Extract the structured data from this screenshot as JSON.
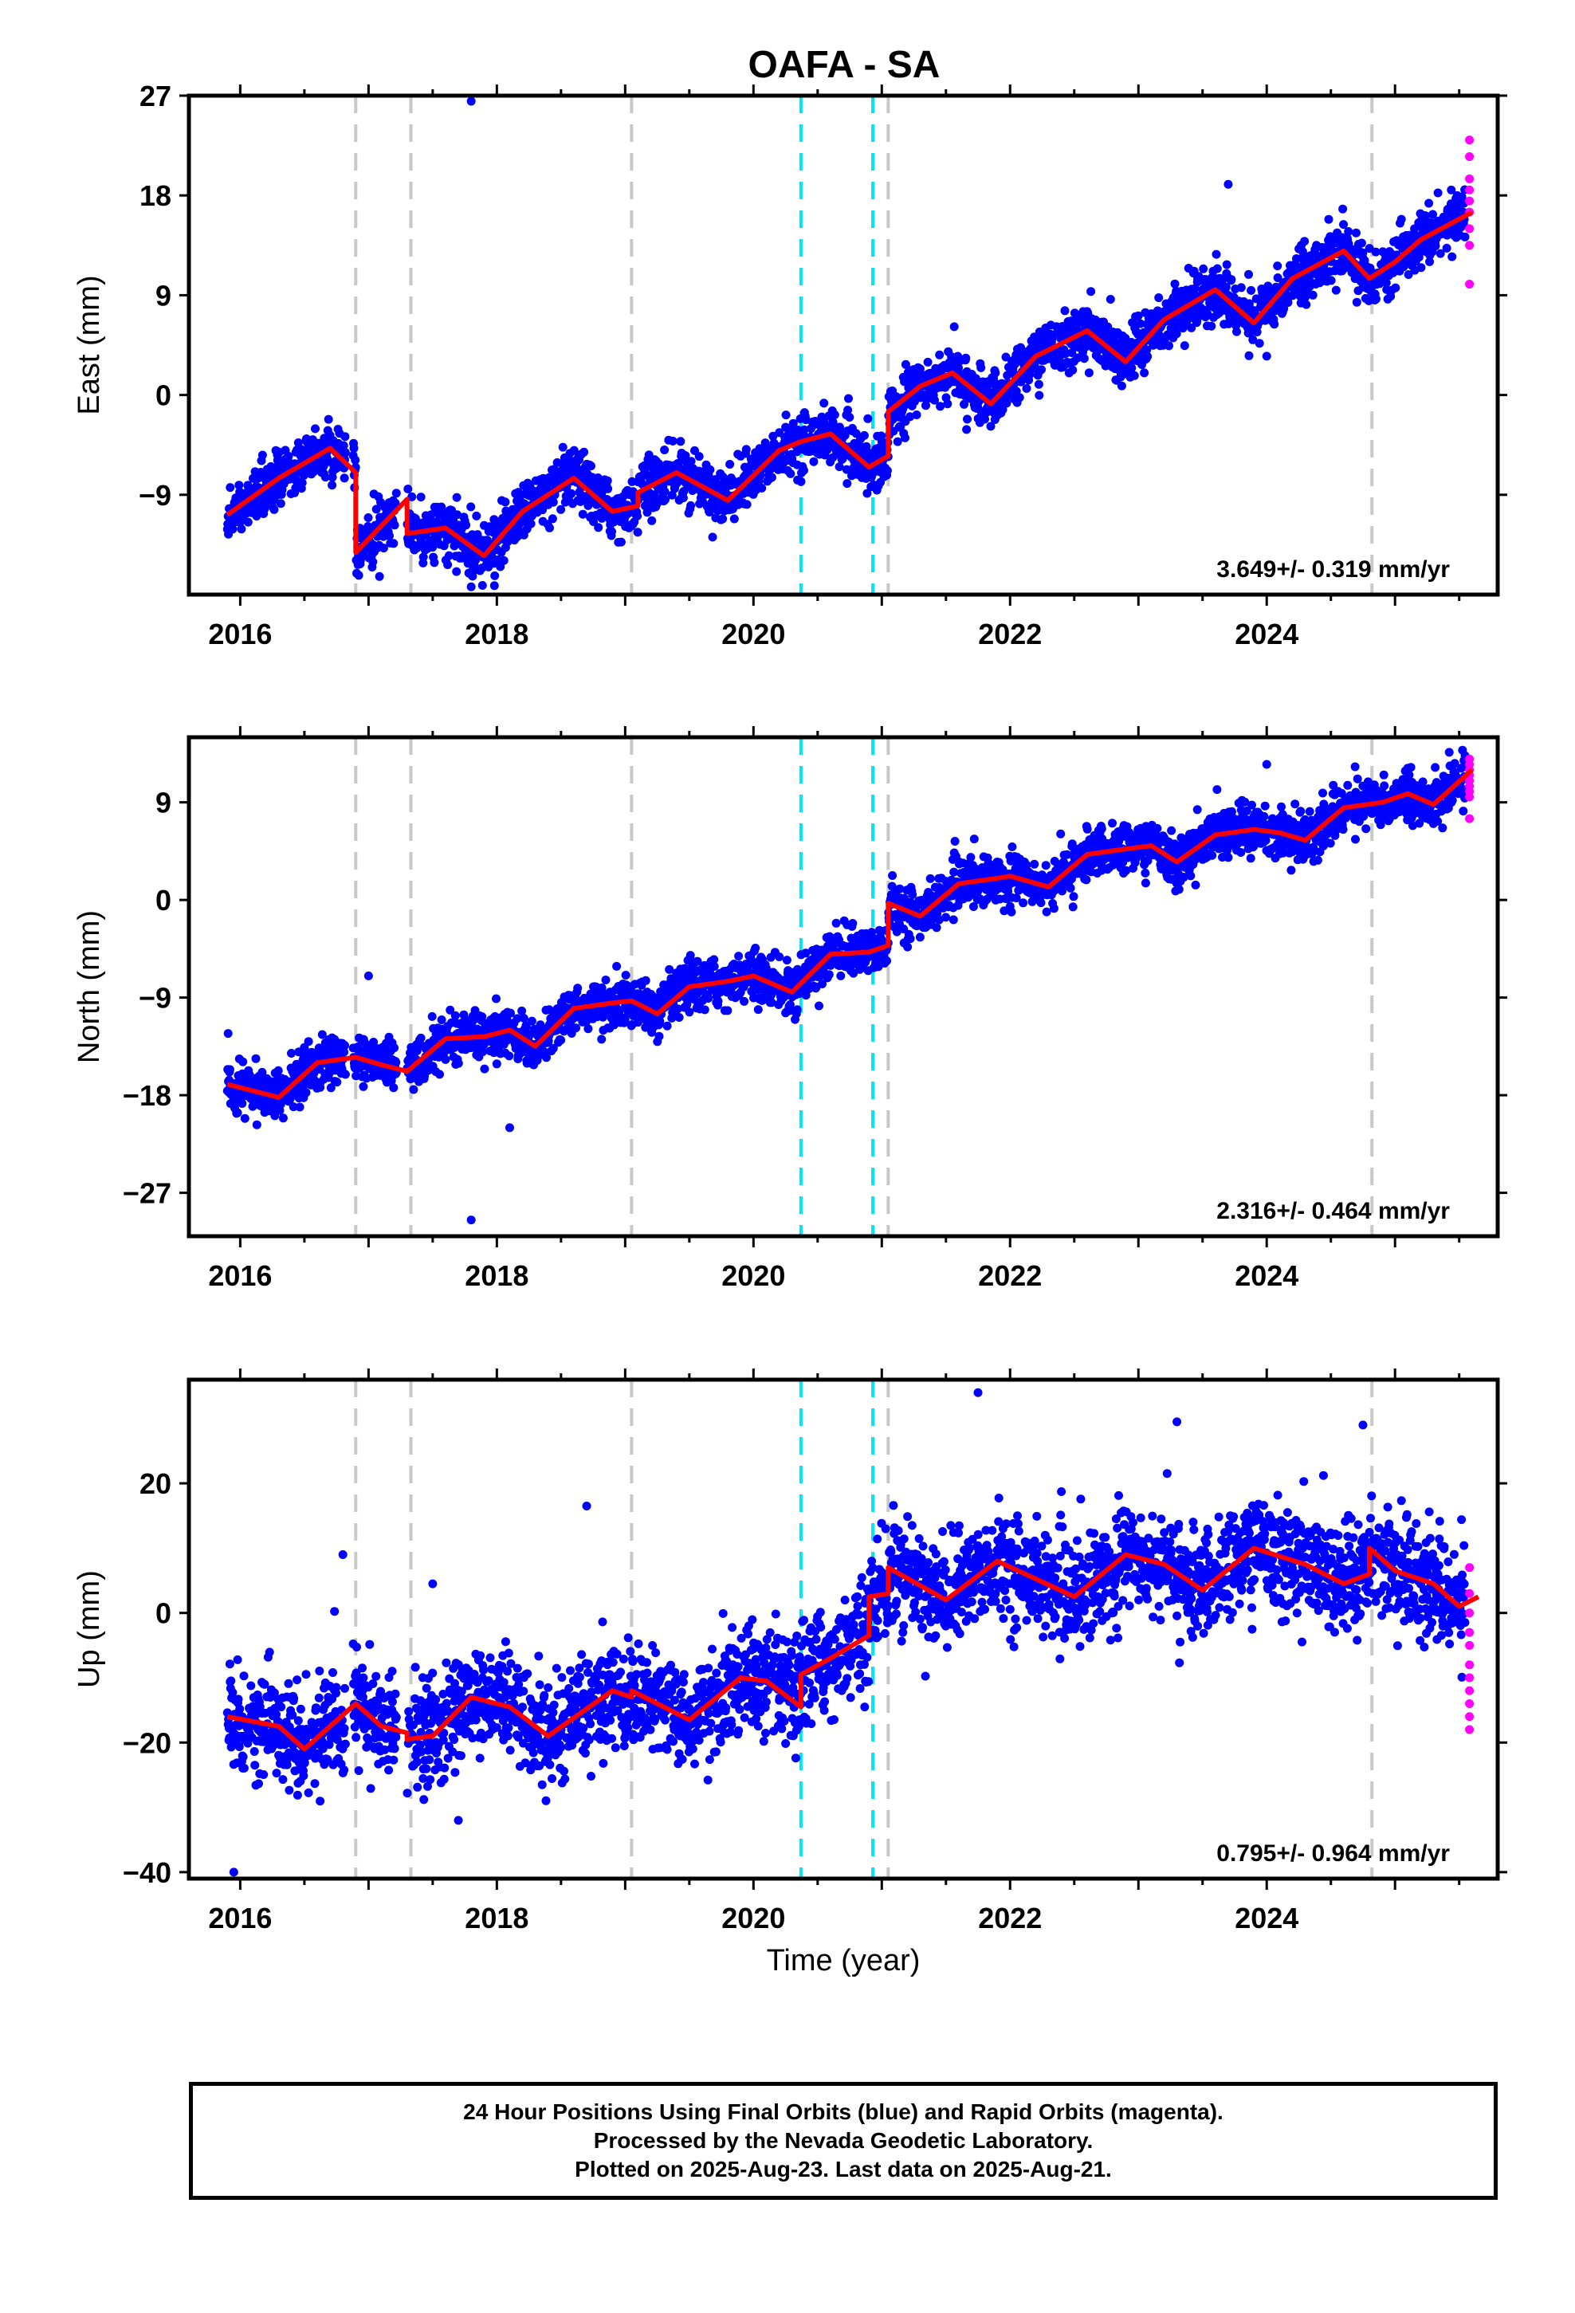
{
  "title": "OAFA - SA",
  "footer": {
    "line1": "24 Hour Positions Using Final Orbits (blue) and Rapid Orbits (magenta).",
    "line2": "Processed by the Nevada Geodetic Laboratory.",
    "line3": "Plotted on 2025-Aug-23. Last data on 2025-Aug-21."
  },
  "colors": {
    "final_orbits": "#0000ff",
    "rapid_orbits": "#ff00ff",
    "model": "#ff0000",
    "event_gray": "#c8c8c8",
    "event_cyan": "#00e5ff"
  },
  "chart_data": [
    {
      "type": "scatter",
      "id": "east",
      "ylabel": "East (mm)",
      "xlabel": "",
      "xlim": [
        2015.6,
        2025.8
      ],
      "ylim": [
        -18,
        27
      ],
      "yticks": [
        27,
        18,
        9,
        0,
        -9
      ],
      "xticks": [
        2016,
        2018,
        2020,
        2022,
        2024
      ],
      "rate_text": "3.649+/- 0.319 mm/yr",
      "noise_sd": 1.2,
      "model_path": [
        [
          2015.9,
          -10.8
        ],
        [
          2016.3,
          -7.5
        ],
        [
          2016.7,
          -4.8
        ],
        [
          2016.9,
          -7.0
        ],
        [
          2016.9,
          -14.2
        ],
        [
          2017.3,
          -9.4
        ],
        [
          2017.3,
          -12.5
        ],
        [
          2017.6,
          -12.0
        ],
        [
          2017.9,
          -14.5
        ],
        [
          2018.2,
          -10.5
        ],
        [
          2018.6,
          -7.5
        ],
        [
          2018.9,
          -10.5
        ],
        [
          2019.1,
          -10.0
        ],
        [
          2019.1,
          -8.8
        ],
        [
          2019.4,
          -7.0
        ],
        [
          2019.8,
          -9.5
        ],
        [
          2020.2,
          -5.0
        ],
        [
          2020.37,
          -4.2
        ],
        [
          2020.6,
          -3.5
        ],
        [
          2020.9,
          -6.5
        ],
        [
          2021.05,
          -5.5
        ],
        [
          2021.05,
          -1.5
        ],
        [
          2021.3,
          0.8
        ],
        [
          2021.55,
          2.0
        ],
        [
          2021.85,
          -0.8
        ],
        [
          2022.2,
          3.5
        ],
        [
          2022.6,
          5.8
        ],
        [
          2022.9,
          3.0
        ],
        [
          2023.2,
          6.8
        ],
        [
          2023.6,
          9.5
        ],
        [
          2023.9,
          6.5
        ],
        [
          2024.2,
          10.5
        ],
        [
          2024.6,
          13.0
        ],
        [
          2024.8,
          10.5
        ],
        [
          2025.0,
          12.0
        ],
        [
          2025.2,
          14.0
        ],
        [
          2025.6,
          16.5
        ]
      ],
      "outliers": [
        [
          2017.8,
          26.5
        ],
        [
          2017.8,
          -17.3
        ],
        [
          2023.7,
          19.0
        ],
        [
          2024.0,
          3.5
        ]
      ],
      "rapid_points": [
        [
          2025.58,
          23.0
        ],
        [
          2025.58,
          21.5
        ],
        [
          2025.58,
          19.5
        ],
        [
          2025.58,
          18.5
        ],
        [
          2025.58,
          17.5
        ],
        [
          2025.58,
          16.5
        ],
        [
          2025.58,
          15.0
        ],
        [
          2025.58,
          13.5
        ],
        [
          2025.58,
          10.0
        ]
      ]
    },
    {
      "type": "scatter",
      "id": "north",
      "ylabel": "North (mm)",
      "xlabel": "",
      "xlim": [
        2015.6,
        2025.8
      ],
      "ylim": [
        -31,
        15
      ],
      "yticks": [
        9,
        0,
        -9,
        -18,
        -27
      ],
      "xticks": [
        2016,
        2018,
        2020,
        2022,
        2024
      ],
      "rate_text": "2.316+/- 0.464 mm/yr",
      "noise_sd": 1.1,
      "model_path": [
        [
          2015.9,
          -17.0
        ],
        [
          2016.3,
          -18.2
        ],
        [
          2016.6,
          -15.0
        ],
        [
          2016.9,
          -14.5
        ],
        [
          2017.1,
          -15.2
        ],
        [
          2017.3,
          -15.8
        ],
        [
          2017.6,
          -12.8
        ],
        [
          2017.9,
          -12.6
        ],
        [
          2018.1,
          -12.0
        ],
        [
          2018.3,
          -13.5
        ],
        [
          2018.6,
          -10.0
        ],
        [
          2018.9,
          -9.5
        ],
        [
          2019.05,
          -9.3
        ],
        [
          2019.25,
          -10.5
        ],
        [
          2019.5,
          -8.0
        ],
        [
          2019.8,
          -7.5
        ],
        [
          2020.0,
          -7.0
        ],
        [
          2020.3,
          -8.5
        ],
        [
          2020.6,
          -5.0
        ],
        [
          2020.9,
          -4.8
        ],
        [
          2021.05,
          -4.2
        ],
        [
          2021.05,
          -0.3
        ],
        [
          2021.3,
          -1.5
        ],
        [
          2021.6,
          1.5
        ],
        [
          2021.9,
          2.0
        ],
        [
          2022.0,
          2.2
        ],
        [
          2022.3,
          1.2
        ],
        [
          2022.6,
          4.2
        ],
        [
          2022.9,
          4.7
        ],
        [
          2023.1,
          5.0
        ],
        [
          2023.3,
          3.5
        ],
        [
          2023.6,
          6.0
        ],
        [
          2023.9,
          6.5
        ],
        [
          2024.1,
          6.2
        ],
        [
          2024.3,
          5.5
        ],
        [
          2024.6,
          8.5
        ],
        [
          2024.9,
          9.0
        ],
        [
          2025.1,
          9.8
        ],
        [
          2025.3,
          8.8
        ],
        [
          2025.6,
          12.0
        ]
      ],
      "outliers": [
        [
          2017.8,
          -29.5
        ],
        [
          2018.1,
          -21.0
        ],
        [
          2017.0,
          -7.0
        ],
        [
          2024.0,
          12.5
        ]
      ],
      "rapid_points": [
        [
          2025.58,
          13.0
        ],
        [
          2025.58,
          12.5
        ],
        [
          2025.58,
          12.0
        ],
        [
          2025.58,
          11.5
        ],
        [
          2025.58,
          11.0
        ],
        [
          2025.58,
          10.5
        ],
        [
          2025.58,
          10.0
        ],
        [
          2025.58,
          9.5
        ],
        [
          2025.58,
          7.5
        ]
      ]
    },
    {
      "type": "scatter",
      "id": "up",
      "ylabel": "Up (mm)",
      "xlabel": "Time (year)",
      "xlim": [
        2015.6,
        2025.8
      ],
      "ylim": [
        -41,
        36
      ],
      "yticks": [
        20,
        0,
        -20,
        -40
      ],
      "xticks": [
        2016,
        2018,
        2020,
        2022,
        2024
      ],
      "rate_text": "0.795+/- 0.964 mm/yr",
      "noise_sd": 4.0,
      "model_path": [
        [
          2015.9,
          -16.0
        ],
        [
          2016.3,
          -17.5
        ],
        [
          2016.5,
          -21.0
        ],
        [
          2016.9,
          -14.0
        ],
        [
          2017.1,
          -17.5
        ],
        [
          2017.3,
          -18.5
        ],
        [
          2017.3,
          -19.5
        ],
        [
          2017.5,
          -19.0
        ],
        [
          2017.8,
          -13.0
        ],
        [
          2018.1,
          -14.5
        ],
        [
          2018.4,
          -19.0
        ],
        [
          2018.9,
          -12.0
        ],
        [
          2019.05,
          -13.0
        ],
        [
          2019.05,
          -12.0
        ],
        [
          2019.5,
          -16.5
        ],
        [
          2019.9,
          -10.0
        ],
        [
          2020.1,
          -10.5
        ],
        [
          2020.37,
          -14.5
        ],
        [
          2020.37,
          -9.5
        ],
        [
          2020.6,
          -7.0
        ],
        [
          2020.9,
          -3.5
        ],
        [
          2020.9,
          2.5
        ],
        [
          2021.05,
          3.0
        ],
        [
          2021.05,
          7.0
        ],
        [
          2021.5,
          2.0
        ],
        [
          2021.9,
          8.0
        ],
        [
          2022.5,
          2.5
        ],
        [
          2022.9,
          9.0
        ],
        [
          2023.2,
          7.5
        ],
        [
          2023.5,
          3.5
        ],
        [
          2023.9,
          10.0
        ],
        [
          2024.3,
          7.5
        ],
        [
          2024.6,
          4.5
        ],
        [
          2024.8,
          6.0
        ],
        [
          2024.8,
          10.0
        ],
        [
          2025.0,
          6.5
        ],
        [
          2025.3,
          4.5
        ],
        [
          2025.5,
          1.0
        ],
        [
          2025.65,
          2.5
        ]
      ],
      "outliers": [
        [
          2016.8,
          9.0
        ],
        [
          2017.5,
          4.5
        ],
        [
          2017.7,
          -32.0
        ],
        [
          2018.7,
          16.5
        ],
        [
          2015.95,
          -40.0
        ],
        [
          2021.75,
          34.0
        ],
        [
          2023.3,
          29.5
        ],
        [
          2024.75,
          29.0
        ]
      ],
      "rapid_points": [
        [
          2025.58,
          7.0
        ],
        [
          2025.58,
          3.0
        ],
        [
          2025.58,
          0.0
        ],
        [
          2025.58,
          -3.0
        ],
        [
          2025.58,
          -5.0
        ],
        [
          2025.58,
          -8.0
        ],
        [
          2025.58,
          -10.0
        ],
        [
          2025.58,
          -12.0
        ],
        [
          2025.58,
          -14.0
        ],
        [
          2025.58,
          -16.0
        ],
        [
          2025.58,
          -18.0
        ]
      ]
    }
  ],
  "event_lines": [
    {
      "year": 2016.9,
      "kind": "gray"
    },
    {
      "year": 2017.33,
      "kind": "gray"
    },
    {
      "year": 2019.05,
      "kind": "gray"
    },
    {
      "year": 2020.37,
      "kind": "cyan"
    },
    {
      "year": 2020.93,
      "kind": "cyan"
    },
    {
      "year": 2021.05,
      "kind": "gray"
    },
    {
      "year": 2024.82,
      "kind": "gray"
    }
  ],
  "data_span": {
    "start": 2015.9,
    "end": 2025.55
  }
}
